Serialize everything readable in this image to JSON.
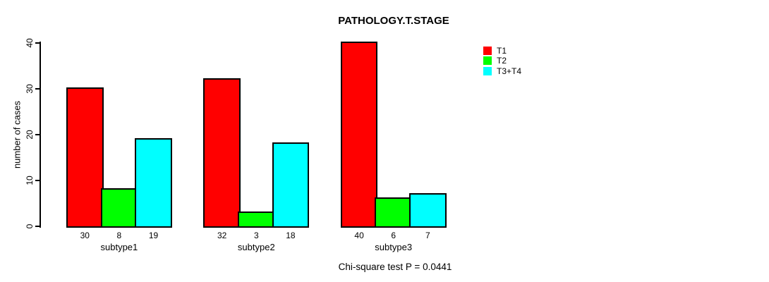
{
  "chart_data": {
    "type": "bar",
    "title": "PATHOLOGY.T.STAGE",
    "xlabel": "",
    "ylabel": "number of cases",
    "categories": [
      "subtype1",
      "subtype2",
      "subtype3"
    ],
    "series": [
      {
        "name": "T1",
        "color": "#FF0000",
        "values": [
          30,
          32,
          40
        ]
      },
      {
        "name": "T2",
        "color": "#00FF00",
        "values": [
          8,
          3,
          6
        ]
      },
      {
        "name": "T3+T4",
        "color": "#00FFFF",
        "values": [
          19,
          18,
          7
        ]
      }
    ],
    "ylim": [
      0,
      40
    ],
    "yticks": [
      0,
      10,
      20,
      30,
      40
    ],
    "grid": false,
    "legend_position": "right",
    "bar_value_labels": [
      [
        30,
        8,
        19
      ],
      [
        32,
        3,
        18
      ],
      [
        40,
        6,
        7
      ]
    ],
    "annotation": "Chi-square test P = 0.0441"
  }
}
